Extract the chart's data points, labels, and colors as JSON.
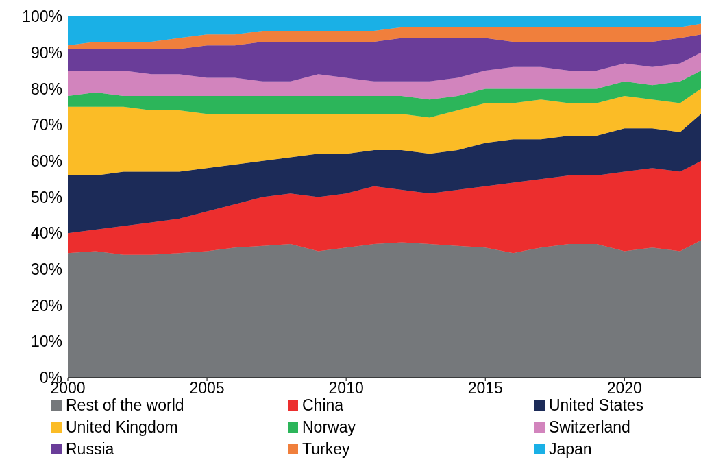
{
  "chart_data": {
    "type": "area",
    "stacked": true,
    "x": [
      2000,
      2001,
      2002,
      2003,
      2004,
      2005,
      2006,
      2007,
      2008,
      2009,
      2010,
      2011,
      2012,
      2013,
      2014,
      2015,
      2016,
      2017,
      2018,
      2019,
      2020,
      2021,
      2022,
      2022.75
    ],
    "xlim": [
      2000,
      2022.75
    ],
    "xticks": [
      2000,
      2005,
      2010,
      2015,
      2020
    ],
    "ylim": [
      0,
      100
    ],
    "yticks": [
      {
        "value": 0,
        "label": "0%"
      },
      {
        "value": 10,
        "label": "10%"
      },
      {
        "value": 20,
        "label": "20%"
      },
      {
        "value": 30,
        "label": "30%"
      },
      {
        "value": 40,
        "label": "40%"
      },
      {
        "value": 50,
        "label": "50%"
      },
      {
        "value": 60,
        "label": "60%"
      },
      {
        "value": 70,
        "label": "70%"
      },
      {
        "value": 80,
        "label": "80%"
      },
      {
        "value": 90,
        "label": "90%"
      },
      {
        "value": 100,
        "label": "100%"
      }
    ],
    "grid": false,
    "legend": "bottom",
    "series": [
      {
        "name": "Rest of the world",
        "color": "#75787b",
        "values": [
          34.5,
          35,
          34,
          34,
          34.5,
          35,
          36,
          36.5,
          37,
          35,
          36,
          37,
          37.5,
          37,
          36.5,
          36,
          34.5,
          36,
          37,
          37,
          35,
          36,
          35,
          38
        ]
      },
      {
        "name": "China",
        "color": "#ec2e2e",
        "values": [
          5.5,
          6,
          8,
          9,
          9.5,
          11,
          12,
          13.5,
          14,
          15,
          15,
          16,
          14.5,
          14,
          15.5,
          17,
          19.5,
          19,
          19,
          19,
          22,
          22,
          22,
          22
        ]
      },
      {
        "name": "United States",
        "color": "#1c2b58",
        "values": [
          16,
          15,
          15,
          14,
          13,
          12,
          11,
          10,
          10,
          12,
          11,
          10,
          11,
          11,
          11,
          12,
          12,
          11,
          11,
          11,
          12,
          11,
          11,
          13
        ]
      },
      {
        "name": "United Kingdom",
        "color": "#fbbc26",
        "values": [
          19,
          19,
          18,
          17,
          17,
          15,
          14,
          13,
          12,
          11,
          11,
          10,
          10,
          10,
          11,
          11,
          10,
          11,
          9,
          9,
          9,
          8,
          8,
          7
        ]
      },
      {
        "name": "Norway",
        "color": "#2cb55a",
        "values": [
          3,
          4,
          3,
          4,
          4,
          5,
          5,
          5,
          5,
          5,
          5,
          5,
          5,
          5,
          4,
          4,
          4,
          3,
          4,
          4,
          4,
          4,
          6,
          5
        ]
      },
      {
        "name": "Switzerland",
        "color": "#d284bd",
        "values": [
          7,
          6,
          7,
          6,
          6,
          5,
          5,
          4,
          4,
          6,
          5,
          4,
          4,
          5,
          5,
          5,
          6,
          6,
          5,
          5,
          5,
          5,
          5,
          5
        ]
      },
      {
        "name": "Russia",
        "color": "#6a3d99",
        "values": [
          6,
          6,
          6,
          7,
          7,
          9,
          9,
          11,
          11,
          9,
          10,
          11,
          12,
          12,
          11,
          9,
          7,
          7,
          8,
          8,
          6,
          7,
          7,
          5
        ]
      },
      {
        "name": "Turkey",
        "color": "#f07f3c",
        "values": [
          1,
          2,
          2,
          2,
          3,
          3,
          3,
          3,
          3,
          3,
          3,
          3,
          3,
          3,
          3,
          3,
          4,
          4,
          4,
          4,
          4,
          4,
          3,
          3
        ]
      },
      {
        "name": "Japan",
        "color": "#1ab0e6",
        "values": [
          8,
          7,
          7,
          7,
          6,
          5,
          5,
          4,
          4,
          4,
          4,
          4,
          3,
          3,
          3,
          3,
          3,
          3,
          3,
          3,
          3,
          3,
          3,
          2
        ]
      }
    ]
  }
}
